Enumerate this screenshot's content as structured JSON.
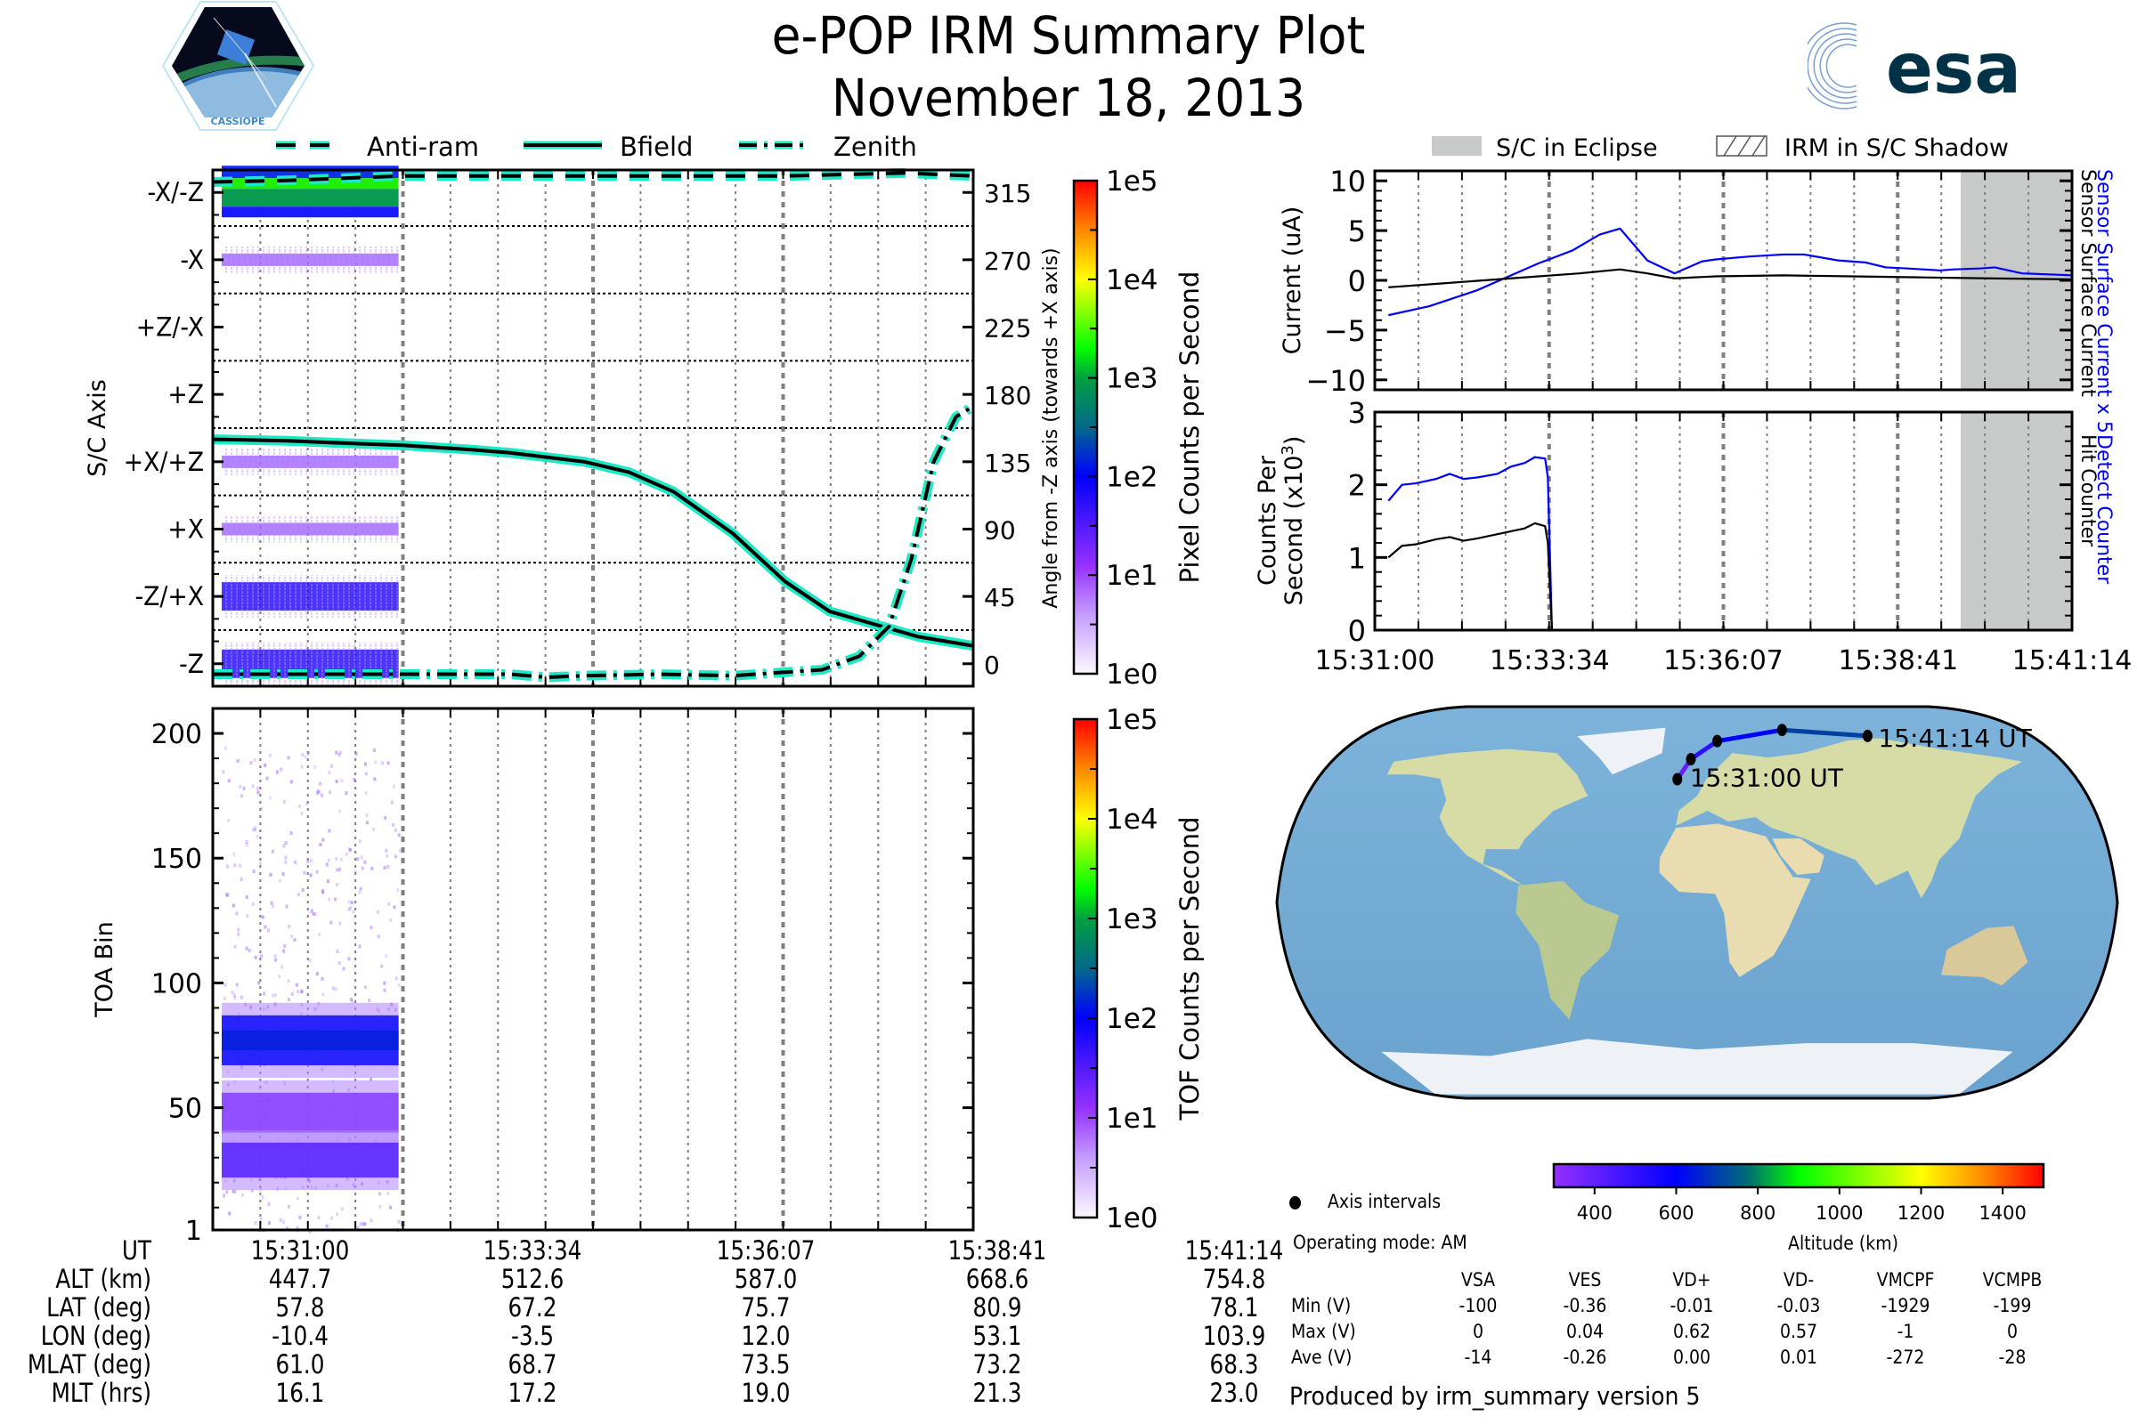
{
  "header": {
    "title": "e-POP IRM Summary Plot",
    "date": "November 18, 2013",
    "left_logo": "cassiope-mission-logo",
    "left_logo_text": "CASSIOPE",
    "right_logo": "esa-logo",
    "right_logo_text": "esa"
  },
  "colors": {
    "teal": "#1de9c4",
    "blue": "#0000ff",
    "eclipse_gray": "#c8cac9",
    "grid": "#808080"
  },
  "chart_data": [
    {
      "id": "sc-axis-angle",
      "type": "heatmap",
      "title": "",
      "ylabel": "S/C Axis",
      "y2label": "Angle from -Z axis (towards +X axis)",
      "yticks_left": [
        "-Z",
        "-Z/+X",
        "+X",
        "+X/+Z",
        "+Z",
        "+Z/-X",
        "-X",
        "-X/-Z"
      ],
      "yticks_right": [
        0,
        45,
        90,
        135,
        180,
        225,
        270,
        315
      ],
      "ylim": [
        -15,
        330
      ],
      "xlim": [
        "15:31:00",
        "15:41:14"
      ],
      "colorbar": {
        "label": "Pixel Counts per Second",
        "ticks": [
          "1e0",
          "1e1",
          "1e2",
          "1e3",
          "1e4",
          "1e5"
        ],
        "scale": "log"
      },
      "legend": {
        "placement": "top",
        "entries": [
          {
            "name": "Anti-ram",
            "style": "dashed"
          },
          {
            "name": "Bfield",
            "style": "solid"
          },
          {
            "name": "Zenith",
            "style": "dashdot"
          }
        ]
      },
      "heat_bands": [
        {
          "axis": "-X/-Z",
          "intensity_log": 2.4,
          "end": "15:33:34"
        },
        {
          "axis": "-X",
          "intensity_log": 0.8,
          "end": "15:33:34"
        },
        {
          "axis": "+X/+Z",
          "intensity_log": 0.8,
          "end": "15:33:34"
        },
        {
          "axis": "+X",
          "intensity_log": 0.7,
          "end": "15:33:34"
        },
        {
          "axis": "-Z/+X",
          "intensity_log": 1.2,
          "end": "15:33:34"
        },
        {
          "axis": "-Z",
          "intensity_log": 1.3,
          "end": "15:33:34"
        }
      ],
      "series": [
        {
          "name": "Anti-ram",
          "x_min": [
            0,
            1,
            2,
            2.57,
            4,
            5.13,
            6,
            7,
            7.7,
            8.5,
            9.3,
            10.23
          ],
          "values": [
            322,
            323,
            325,
            326,
            326,
            326,
            326,
            326,
            326,
            327,
            328,
            326
          ]
        },
        {
          "name": "Bfield",
          "x_min": [
            0,
            1,
            2,
            2.57,
            3.5,
            4,
            5,
            5.6,
            6.2,
            7,
            7.7,
            8.3,
            9,
            9.5,
            10.23
          ],
          "values": [
            150,
            149,
            147,
            146,
            143,
            141,
            135,
            128,
            115,
            87,
            55,
            35,
            25,
            18,
            12
          ]
        },
        {
          "name": "Zenith",
          "x_min": [
            0,
            1,
            2,
            2.57,
            3.5,
            4,
            4.5,
            5,
            6,
            7,
            8.2,
            8.7,
            9.1,
            9.4,
            9.7,
            10,
            10.23
          ],
          "values": [
            -7,
            -7,
            -7,
            -7,
            -7,
            -7,
            -9,
            -8,
            -7,
            -8,
            -4,
            5,
            25,
            70,
            135,
            165,
            172
          ]
        }
      ]
    },
    {
      "id": "toa-spectrogram",
      "type": "heatmap",
      "ylabel": "TOA Bin",
      "yticks": [
        1,
        50,
        100,
        150,
        200
      ],
      "ylim": [
        1,
        210
      ],
      "colorbar": {
        "label": "TOF Counts per Second",
        "ticks": [
          "1e0",
          "1e1",
          "1e2",
          "1e3",
          "1e4",
          "1e5"
        ],
        "scale": "log"
      },
      "bands": [
        {
          "center": 77,
          "halfwidth": 10,
          "intensity_log": 1.7
        },
        {
          "center": 48,
          "halfwidth": 8,
          "intensity_log": 1.1
        },
        {
          "center": 29,
          "halfwidth": 7,
          "intensity_log": 1.2
        }
      ],
      "data_end": "15:33:34",
      "noise_range": [
        1,
        195
      ]
    },
    {
      "id": "sensor-current",
      "type": "line",
      "ylabel": "Current (uA)",
      "yticks": [
        -10,
        -5,
        0,
        5,
        10
      ],
      "ylim": [
        -11,
        11
      ],
      "right_labels": [
        {
          "text": "Sensor Surface Current x 5",
          "color": "#0000ff"
        },
        {
          "text": "Sensor Surface Current",
          "color": "#000000"
        }
      ],
      "series": [
        {
          "name": "Sensor Surface Current x 5",
          "color": "#0000ff",
          "x_min": [
            0.2,
            0.8,
            1.5,
            2.0,
            2.4,
            2.9,
            3.3,
            3.6,
            4.0,
            4.4,
            4.8,
            5.0,
            5.5,
            6.0,
            6.3,
            6.8,
            7.2,
            7.5,
            7.8,
            8.3,
            8.5,
            8.9,
            9.1,
            9.5,
            9.9,
            10.23
          ],
          "values": [
            -3.5,
            -2.6,
            -1.0,
            0.5,
            1.7,
            3.0,
            4.6,
            5.2,
            2.0,
            0.7,
            1.9,
            2.1,
            2.4,
            2.6,
            2.6,
            2.0,
            1.8,
            1.3,
            1.2,
            1.0,
            1.1,
            1.2,
            1.3,
            0.7,
            0.6,
            0.5
          ]
        },
        {
          "name": "Sensor Surface Current",
          "color": "#000000",
          "x_min": [
            0.2,
            1.0,
            2.0,
            3.0,
            3.6,
            4.0,
            4.4,
            5.0,
            6.0,
            7.0,
            8.0,
            9.0,
            10.23
          ],
          "values": [
            -0.7,
            -0.3,
            0.2,
            0.7,
            1.1,
            0.7,
            0.2,
            0.4,
            0.5,
            0.4,
            0.3,
            0.2,
            0.1
          ]
        }
      ],
      "eclipse_start_min": 8.6
    },
    {
      "id": "counts-per-second",
      "type": "line",
      "ylabel": "Counts Per Second (x10^3)",
      "ylabel_line1": "Counts Per",
      "ylabel_line2": "Second (x10",
      "ylabel_sup": "3",
      "ylabel_close": ")",
      "yticks": [
        0,
        1,
        2,
        3
      ],
      "ylim": [
        0,
        3
      ],
      "right_labels": [
        {
          "text": "Detect Counter",
          "color": "#0000ff"
        },
        {
          "text": "Hit Counter",
          "color": "#000000"
        }
      ],
      "series": [
        {
          "name": "Detect Counter",
          "color": "#0000ff",
          "x_min": [
            0.2,
            0.4,
            0.6,
            0.9,
            1.1,
            1.3,
            1.5,
            1.8,
            2.0,
            2.2,
            2.35,
            2.5,
            2.54,
            2.6,
            10.23
          ],
          "values": [
            1.78,
            2.0,
            2.02,
            2.08,
            2.15,
            2.08,
            2.1,
            2.15,
            2.25,
            2.3,
            2.38,
            2.36,
            2.1,
            0.0,
            0.0
          ]
        },
        {
          "name": "Hit Counter",
          "color": "#000000",
          "x_min": [
            0.2,
            0.4,
            0.6,
            0.9,
            1.1,
            1.3,
            1.5,
            1.8,
            2.0,
            2.2,
            2.35,
            2.5,
            2.54,
            2.6
          ],
          "values": [
            1.0,
            1.16,
            1.18,
            1.25,
            1.28,
            1.23,
            1.26,
            1.32,
            1.36,
            1.4,
            1.47,
            1.43,
            1.2,
            0.0
          ]
        }
      ],
      "eclipse_start_min": 8.6
    },
    {
      "id": "orbit-map",
      "type": "scatter",
      "projection": "world-map",
      "track": [
        {
          "lon": -10.4,
          "lat": 57.8
        },
        {
          "lon": -3.5,
          "lat": 67.2
        },
        {
          "lon": 12.0,
          "lat": 75.7
        },
        {
          "lon": 53.1,
          "lat": 80.9
        },
        {
          "lon": 103.9,
          "lat": 78.1
        }
      ],
      "start_label": "15:31:00 UT",
      "end_label": "15:41:14 UT",
      "colorbar": {
        "label": "Altitude (km)",
        "ticks": [
          400,
          600,
          800,
          1000,
          1200,
          1400
        ],
        "range": [
          300,
          1500
        ]
      },
      "legend": "Axis intervals"
    }
  ],
  "legends": {
    "left": [
      {
        "name": "Anti-ram"
      },
      {
        "name": "Bfield"
      },
      {
        "name": "Zenith"
      }
    ],
    "right": [
      {
        "name": "S/C in Eclipse"
      },
      {
        "name": "IRM in S/C Shadow"
      }
    ]
  },
  "time_axis": {
    "labels": [
      "15:31:00",
      "15:33:34",
      "15:36:07",
      "15:38:41",
      "15:41:14"
    ],
    "label_minutes": [
      0,
      2.567,
      5.117,
      7.683,
      10.233
    ]
  },
  "ephemeris": {
    "rows": [
      {
        "label": "UT",
        "values": [
          "15:31:00",
          "15:33:34",
          "15:36:07",
          "15:38:41",
          "15:41:14"
        ]
      },
      {
        "label": "ALT (km)",
        "values": [
          "447.7",
          "512.6",
          "587.0",
          "668.6",
          "754.8"
        ]
      },
      {
        "label": "LAT (deg)",
        "values": [
          "57.8",
          "67.2",
          "75.7",
          "80.9",
          "78.1"
        ]
      },
      {
        "label": "LON (deg)",
        "values": [
          "-10.4",
          "-3.5",
          "12.0",
          "53.1",
          "103.9"
        ]
      },
      {
        "label": "MLAT (deg)",
        "values": [
          "61.0",
          "68.7",
          "73.5",
          "73.2",
          "68.3"
        ]
      },
      {
        "label": "MLT (hrs)",
        "values": [
          "16.1",
          "17.2",
          "19.0",
          "21.3",
          "23.0"
        ]
      }
    ]
  },
  "map_info": {
    "legend_label": "Axis intervals",
    "operating_mode": "Operating mode: AM",
    "altitude_label": "Altitude (km)"
  },
  "voltages": {
    "headers": [
      "VSA",
      "VES",
      "VD+",
      "VD-",
      "VMCPF",
      "VCMPB"
    ],
    "rows": [
      {
        "label": "Min (V)",
        "values": [
          "-100",
          "-0.36",
          "-0.01",
          "-0.03",
          "-1929",
          "-199"
        ]
      },
      {
        "label": "Max (V)",
        "values": [
          "0",
          "0.04",
          "0.62",
          "0.57",
          "-1",
          "0"
        ]
      },
      {
        "label": "Ave (V)",
        "values": [
          "-14",
          "-0.26",
          "0.00",
          "0.01",
          "-272",
          "-28"
        ]
      }
    ]
  },
  "footer": "Produced by irm_summary version 5"
}
